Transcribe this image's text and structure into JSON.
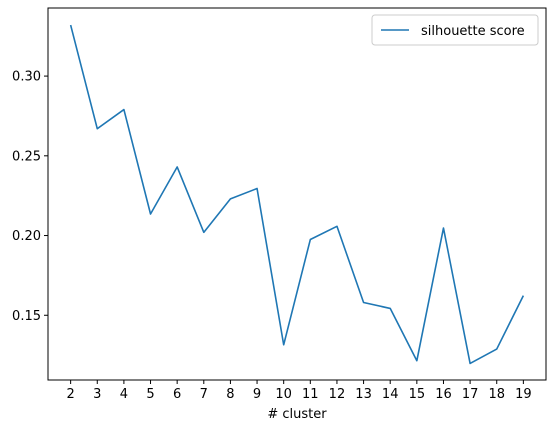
{
  "chart_data": {
    "type": "line",
    "title": "",
    "xlabel": "# cluster",
    "ylabel": "",
    "x": [
      2,
      3,
      4,
      5,
      6,
      7,
      8,
      9,
      10,
      11,
      12,
      13,
      14,
      15,
      16,
      17,
      18,
      19
    ],
    "x_ticks": [
      "2",
      "3",
      "4",
      "5",
      "6",
      "7",
      "8",
      "9",
      "10",
      "11",
      "12",
      "13",
      "14",
      "15",
      "16",
      "17",
      "18",
      "19"
    ],
    "y_ticks": [
      "0.15",
      "0.20",
      "0.25",
      "0.30"
    ],
    "y_tick_values": [
      0.15,
      0.2,
      0.25,
      0.3
    ],
    "xlim": [
      1.15,
      19.85
    ],
    "ylim": [
      0.1094,
      0.3427
    ],
    "grid": false,
    "legend_position": "top-right",
    "series": [
      {
        "name": "silhouette score",
        "color": "#1f77b4",
        "values": [
          0.332,
          0.267,
          0.279,
          0.2135,
          0.243,
          0.202,
          0.223,
          0.2295,
          0.1315,
          0.1975,
          0.2058,
          0.158,
          0.1543,
          0.1215,
          0.2047,
          0.1198,
          0.1288,
          0.1623
        ]
      }
    ]
  }
}
